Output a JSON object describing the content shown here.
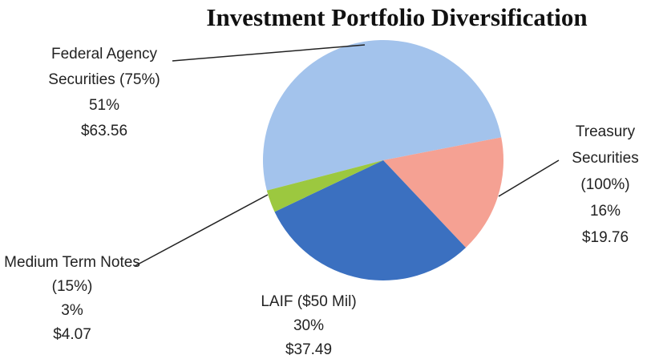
{
  "chart_data": {
    "type": "pie",
    "title": "Investment Portfolio Diversification",
    "categories": [
      "Federal Agency Securities (75%)",
      "Treasury Securities (100%)",
      "LAIF ($50 Mil)",
      "Medium Term Notes (15%)"
    ],
    "values": [
      51,
      16,
      30,
      3
    ],
    "value_labels": [
      "51%",
      "16%",
      "30%",
      "3%"
    ],
    "amounts": [
      63.56,
      19.76,
      37.49,
      4.07
    ],
    "amount_labels": [
      "$63.56",
      "$19.76",
      "$37.49",
      "$4.07"
    ],
    "colors": [
      "#a3c3ec",
      "#f5a193",
      "#3b70c0",
      "#9cc83f"
    ]
  }
}
